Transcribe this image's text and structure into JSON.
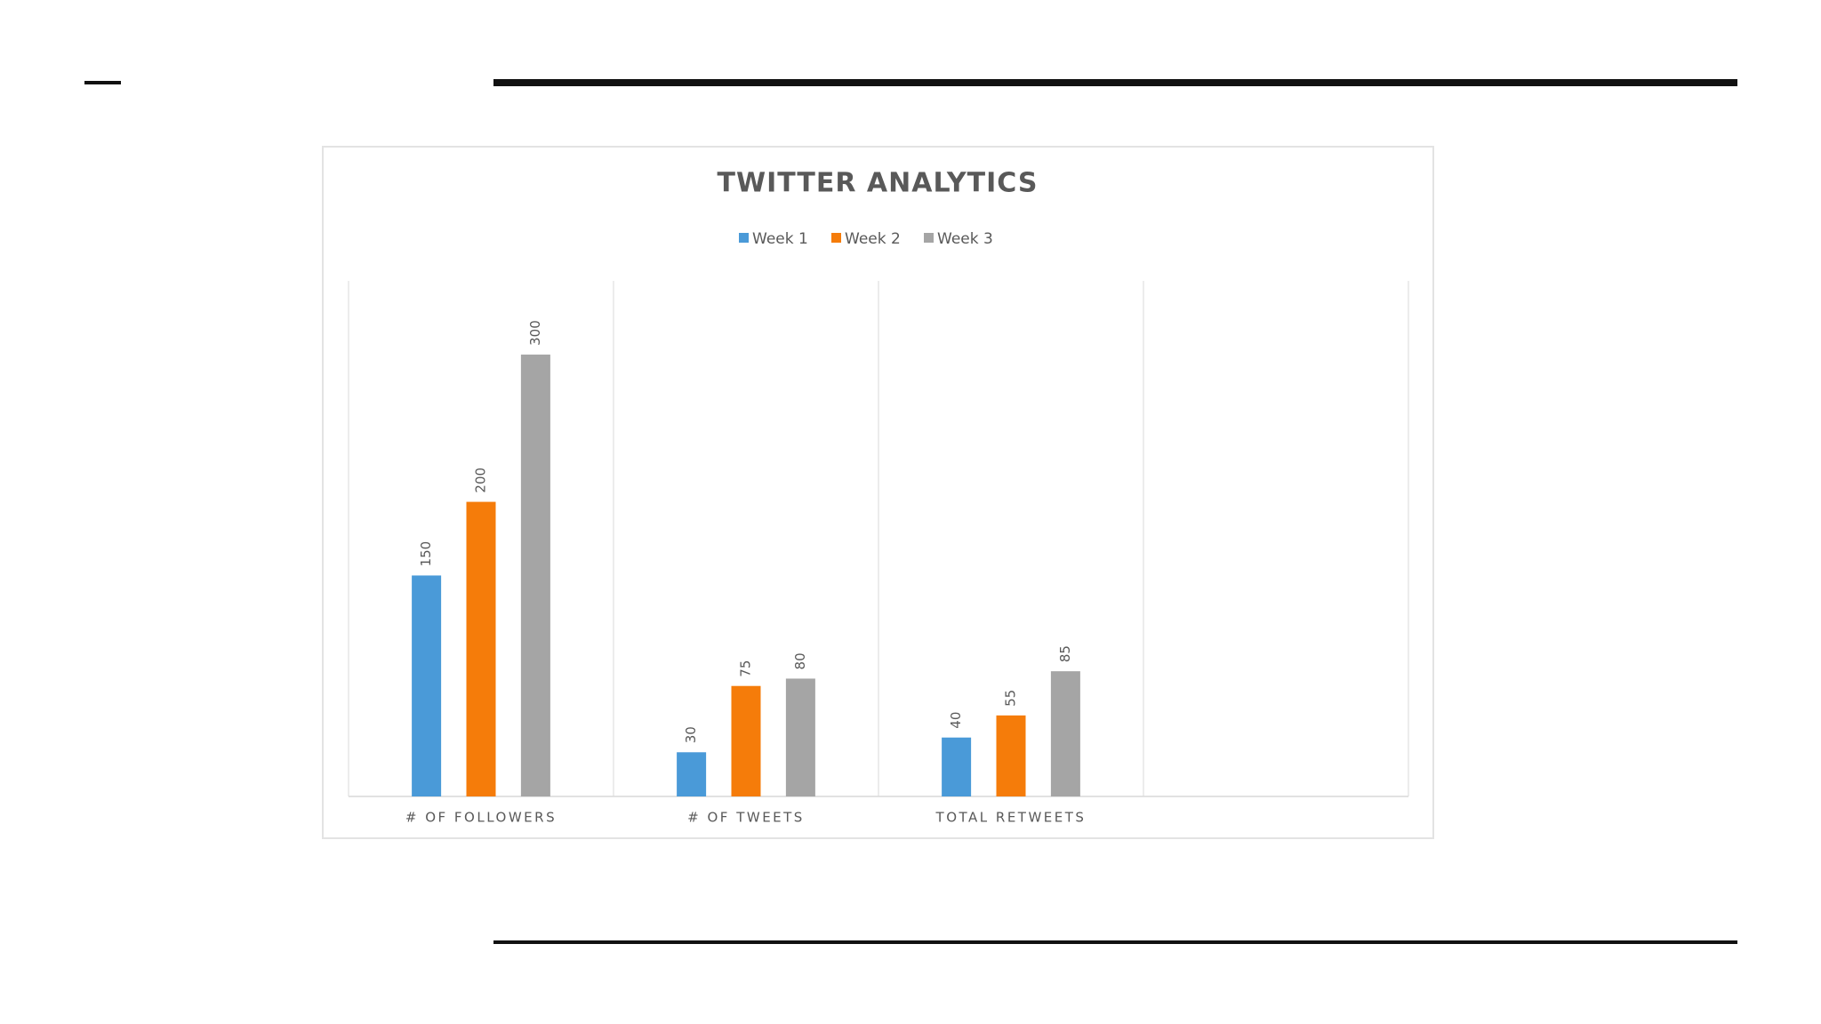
{
  "chart_data": {
    "type": "bar",
    "title": "TWITTER ANALYTICS",
    "categories": [
      "# OF FOLLOWERS",
      "# OF TWEETS",
      "TOTAL RETWEETS",
      null
    ],
    "series": [
      {
        "name": "Week 1",
        "color": "#4a9ad8",
        "values": [
          150,
          30,
          40,
          null
        ]
      },
      {
        "name": "Week 2",
        "color": "#f57c0a",
        "values": [
          200,
          75,
          55,
          null
        ]
      },
      {
        "name": "Week 3",
        "color": "#a5a5a5",
        "values": [
          300,
          80,
          85,
          null
        ]
      }
    ],
    "ylim": [
      0,
      350
    ],
    "grid": true,
    "legend": "top"
  }
}
